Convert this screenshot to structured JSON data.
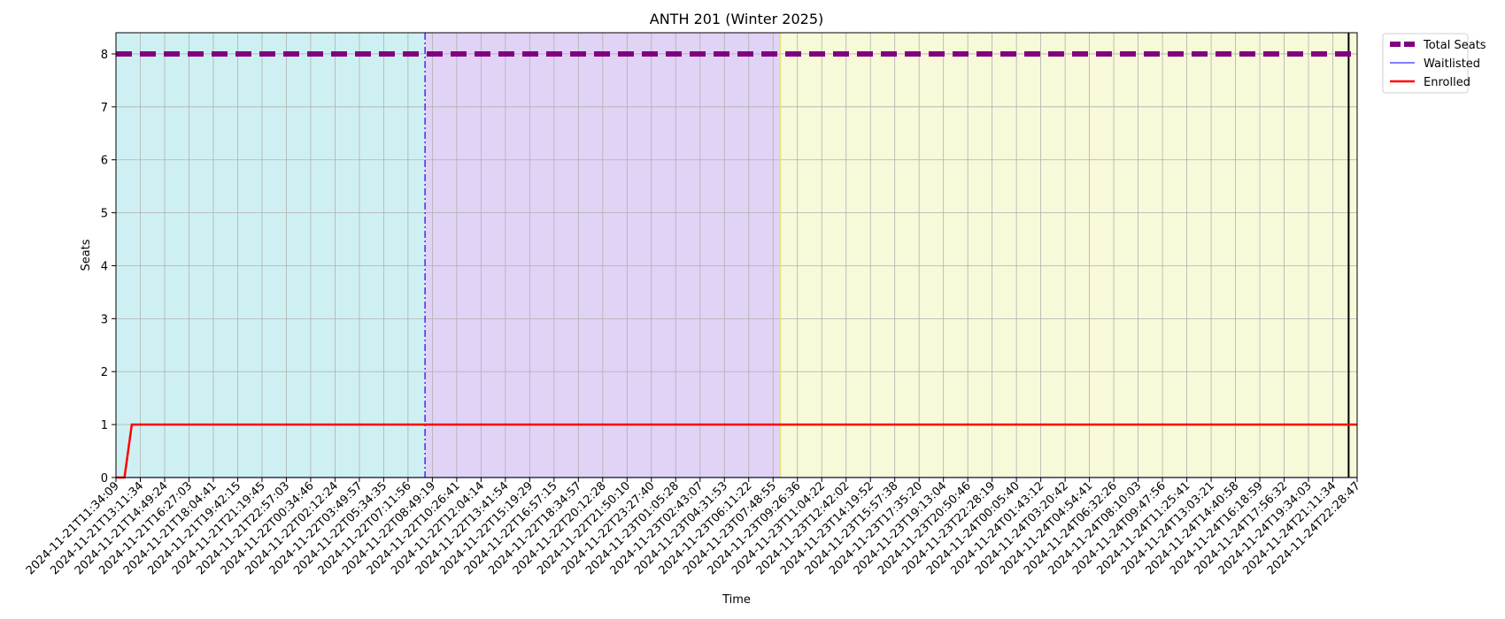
{
  "chart_data": {
    "type": "line",
    "title": "ANTH 201 (Winter 2025)",
    "xlabel": "Time",
    "ylabel": "Seats",
    "ylim": [
      0,
      8.4
    ],
    "yticks": [
      0,
      1,
      2,
      3,
      4,
      5,
      6,
      7,
      8
    ],
    "grid": true,
    "legend_position": "outside-top-right",
    "x": [
      "2024-11-21T11:34:09",
      "2024-11-21T13:11:34",
      "2024-11-21T14:49:24",
      "2024-11-21T16:27:03",
      "2024-11-21T18:04:41",
      "2024-11-21T19:42:15",
      "2024-11-21T21:19:45",
      "2024-11-21T22:57:03",
      "2024-11-22T00:34:46",
      "2024-11-22T02:12:24",
      "2024-11-22T03:49:57",
      "2024-11-22T05:34:35",
      "2024-11-22T07:11:56",
      "2024-11-22T08:49:19",
      "2024-11-22T10:26:41",
      "2024-11-22T12:04:14",
      "2024-11-22T13:41:54",
      "2024-11-22T15:19:29",
      "2024-11-22T16:57:15",
      "2024-11-22T18:34:57",
      "2024-11-22T20:12:28",
      "2024-11-22T21:50:10",
      "2024-11-22T23:27:40",
      "2024-11-23T01:05:28",
      "2024-11-23T02:43:07",
      "2024-11-23T04:31:53",
      "2024-11-23T06:11:22",
      "2024-11-23T07:48:55",
      "2024-11-23T09:26:36",
      "2024-11-23T11:04:22",
      "2024-11-23T12:42:02",
      "2024-11-23T14:19:52",
      "2024-11-23T15:57:38",
      "2024-11-23T17:35:20",
      "2024-11-23T19:13:04",
      "2024-11-23T20:50:46",
      "2024-11-23T22:28:19",
      "2024-11-24T00:05:40",
      "2024-11-24T01:43:12",
      "2024-11-24T03:20:42",
      "2024-11-24T04:54:41",
      "2024-11-24T06:32:26",
      "2024-11-24T08:10:03",
      "2024-11-24T09:47:56",
      "2024-11-24T11:25:41",
      "2024-11-24T13:03:21",
      "2024-11-24T14:40:58",
      "2024-11-24T16:18:59",
      "2024-11-24T17:56:32",
      "2024-11-24T19:34:03",
      "2024-11-24T21:11:34",
      "2024-11-24T22:28:47"
    ],
    "series": [
      {
        "name": "Total Seats",
        "color": "#800080",
        "style": "dashed-thick",
        "points": [
          [
            0,
            8
          ],
          [
            51,
            8
          ]
        ]
      },
      {
        "name": "Waitlisted",
        "color": "#3333ff",
        "style": "thin",
        "points": [
          [
            0,
            0
          ],
          [
            51,
            0
          ]
        ]
      },
      {
        "name": "Enrolled",
        "color": "#ff0000",
        "style": "solid",
        "points": [
          [
            0,
            0
          ],
          [
            0.35,
            0
          ],
          [
            0.65,
            1
          ],
          [
            51,
            1
          ]
        ]
      }
    ],
    "shaded_regions": [
      {
        "from": 0,
        "to": 12.7,
        "color": "#cff0f2"
      },
      {
        "from": 12.7,
        "to": 27.3,
        "color": "#e1d3f5"
      },
      {
        "from": 27.3,
        "to": 51,
        "color": "#f8f9d9"
      }
    ],
    "vertical_lines": [
      {
        "x": 12.7,
        "color": "#5522ee",
        "style": "dashdot"
      },
      {
        "x": 27.3,
        "color": "#e6e07a",
        "style": "solid"
      },
      {
        "x": 50.65,
        "color": "#000000",
        "style": "solid"
      }
    ]
  }
}
